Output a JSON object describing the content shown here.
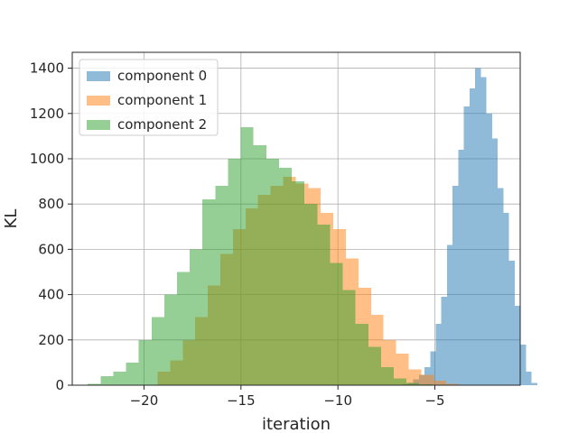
{
  "chart_data": {
    "type": "histogram",
    "title": "",
    "xlabel": "iteration",
    "ylabel": "KL",
    "xlim": [
      -23.7,
      -0.6
    ],
    "ylim": [
      0,
      1470
    ],
    "xticks": [
      -20,
      -15,
      -10,
      -5
    ],
    "xtick_labels": [
      "−20",
      "−15",
      "−10",
      "−5"
    ],
    "yticks": [
      0,
      200,
      400,
      600,
      800,
      1000,
      1200,
      1400
    ],
    "grid": true,
    "legend_position": "top-left",
    "colors": {
      "component 0": "#1f77b4",
      "component 1": "#ff7f0e",
      "component 2": "#2ca02c"
    },
    "series": [
      {
        "name": "component 0",
        "bin_start": -6.7,
        "bin_width": 0.2909,
        "counts": [
          3,
          10,
          25,
          45,
          80,
          150,
          270,
          390,
          620,
          880,
          1040,
          1230,
          1310,
          1400,
          1360,
          1200,
          1090,
          870,
          760,
          550,
          350,
          180,
          60,
          10
        ]
      },
      {
        "name": "component 1",
        "bin_start": -19.3,
        "bin_width": 0.6474,
        "counts": [
          60,
          110,
          200,
          300,
          440,
          580,
          690,
          780,
          840,
          880,
          920,
          890,
          870,
          760,
          690,
          560,
          430,
          310,
          200,
          140,
          70,
          45,
          20,
          5
        ]
      },
      {
        "name": "component 2",
        "bin_start": -22.9,
        "bin_width": 0.6575,
        "counts": [
          5,
          40,
          60,
          100,
          200,
          300,
          400,
          500,
          600,
          820,
          880,
          1000,
          1140,
          1060,
          1000,
          960,
          900,
          800,
          710,
          540,
          420,
          270,
          170,
          80,
          30,
          10,
          3
        ]
      }
    ]
  }
}
